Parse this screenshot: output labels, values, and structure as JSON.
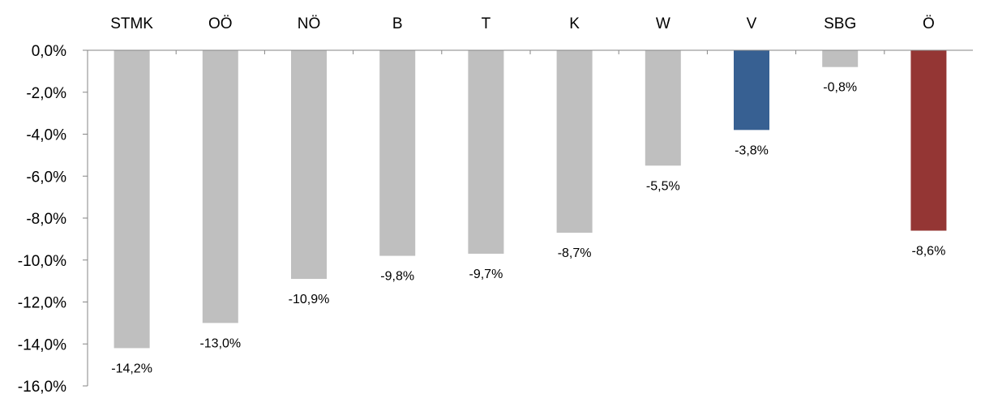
{
  "chart_data": {
    "type": "bar",
    "categories": [
      "STMK",
      "OÖ",
      "NÖ",
      "B",
      "T",
      "K",
      "W",
      "V",
      "SBG",
      "Ö"
    ],
    "values": [
      -14.2,
      -13.0,
      -10.9,
      -9.8,
      -9.7,
      -8.7,
      -5.5,
      -3.8,
      -0.8,
      -8.6
    ],
    "value_labels": [
      "-14,2%",
      "-13,0%",
      "-10,9%",
      "-9,8%",
      "-9,7%",
      "-8,7%",
      "-5,5%",
      "-3,8%",
      "-0,8%",
      "-8,6%"
    ],
    "bar_colors": [
      "#bfbfbf",
      "#bfbfbf",
      "#bfbfbf",
      "#bfbfbf",
      "#bfbfbf",
      "#bfbfbf",
      "#bfbfbf",
      "#376092",
      "#bfbfbf",
      "#943634"
    ],
    "yticks": [
      0,
      -2,
      -4,
      -6,
      -8,
      -10,
      -12,
      -14,
      -16
    ],
    "ytick_labels": [
      "0,0%",
      "-2,0%",
      "-4,0%",
      "-6,0%",
      "-8,0%",
      "-10,0%",
      "-12,0%",
      "-14,0%",
      "-16,0%"
    ],
    "ylim": [
      -16,
      0
    ],
    "category_labels_position": "top",
    "grid": false,
    "legend": false,
    "title": "",
    "xlabel": "",
    "ylabel": ""
  }
}
